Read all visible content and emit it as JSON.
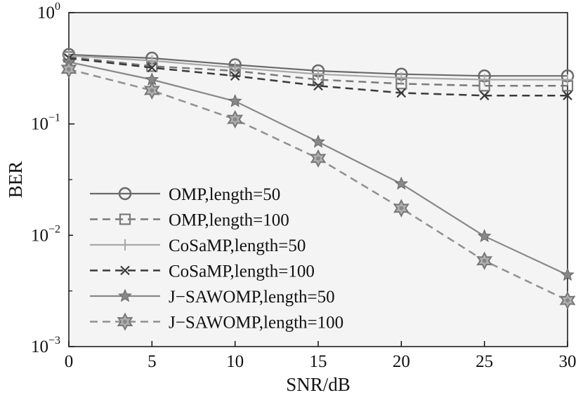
{
  "chart_data": {
    "type": "line",
    "title": "",
    "xlabel": "SNR/dB",
    "ylabel": "BER",
    "xlim": [
      0,
      30
    ],
    "ylim": [
      0.001,
      1
    ],
    "yscale": "log",
    "x": [
      0,
      5,
      10,
      15,
      20,
      25,
      30
    ],
    "x_ticks": [
      "0",
      "5",
      "10",
      "15",
      "20",
      "25",
      "30"
    ],
    "y_ticks": [
      {
        "base": "10",
        "exp": "0",
        "value": 1
      },
      {
        "base": "10",
        "exp": "−1",
        "value": 0.1
      },
      {
        "base": "10",
        "exp": "−2",
        "value": 0.01
      },
      {
        "base": "10",
        "exp": "−3",
        "value": 0.001
      }
    ],
    "grid": false,
    "legend_position": "bottom-left",
    "series": [
      {
        "name": "OMP,length=50",
        "values": [
          0.42,
          0.39,
          0.34,
          0.3,
          0.28,
          0.27,
          0.27
        ],
        "color": "#6a6a6a",
        "dash": "solid",
        "marker": "circle"
      },
      {
        "name": "OMP,length=100",
        "values": [
          0.4,
          0.33,
          0.3,
          0.25,
          0.23,
          0.22,
          0.22
        ],
        "color": "#7a7a7a",
        "dash": "dashed",
        "marker": "square"
      },
      {
        "name": "CoSaMP,length=50",
        "values": [
          0.41,
          0.37,
          0.32,
          0.28,
          0.26,
          0.25,
          0.25
        ],
        "color": "#a8a8a8",
        "dash": "solid",
        "marker": "plus"
      },
      {
        "name": "CoSaMP,length=100",
        "values": [
          0.39,
          0.32,
          0.27,
          0.22,
          0.19,
          0.18,
          0.18
        ],
        "color": "#3a3a3a",
        "dash": "dashed",
        "marker": "x"
      },
      {
        "name": "J−SAWOMP,length=50",
        "values": [
          0.36,
          0.25,
          0.16,
          0.069,
          0.029,
          0.0098,
          0.0044
        ],
        "color": "#888888",
        "dash": "solid",
        "marker": "star"
      },
      {
        "name": "J−SAWOMP,length=100",
        "values": [
          0.31,
          0.2,
          0.11,
          0.049,
          0.0175,
          0.0059,
          0.0026
        ],
        "color": "#909090",
        "dash": "dashed",
        "marker": "hexstar"
      }
    ]
  }
}
